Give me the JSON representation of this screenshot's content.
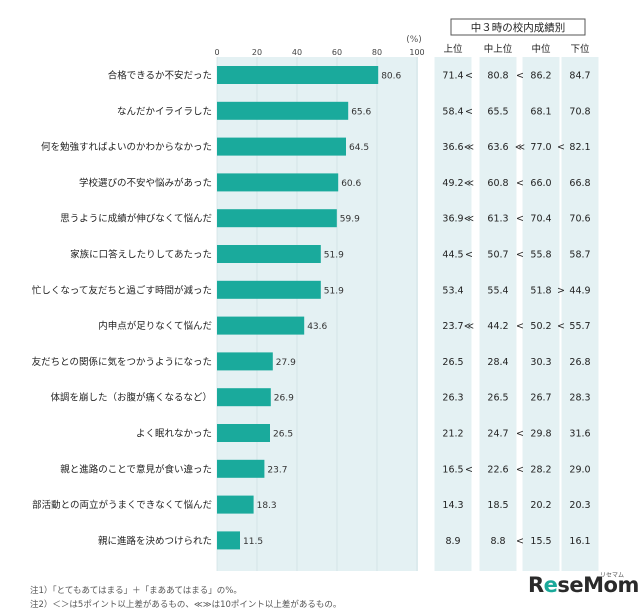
{
  "chart_data": {
    "type": "bar",
    "orientation": "horizontal",
    "unit": "(%)",
    "axis": {
      "min": 0,
      "max": 100,
      "ticks": [
        0,
        20,
        40,
        60,
        80,
        100
      ]
    },
    "categories": [
      "合格できるか不安だった",
      "なんだかイライラした",
      "何を勉強すればよいのかわからなかった",
      "学校選びの不安や悩みがあった",
      "思うように成績が伸びなくて悩んだ",
      "家族に口答えしたりしてあたった",
      "忙しくなって友だちと過ごす時間が減った",
      "内申点が足りなくて悩んだ",
      "友だちとの関係に気をつかうようになった",
      "体調を崩した（お腹が痛くなるなど）",
      "よく眠れなかった",
      "親と進路のことで意見が食い違った",
      "部活動との両立がうまくできなくて悩んだ",
      "親に進路を決めつけられた"
    ],
    "values": [
      80.6,
      65.6,
      64.5,
      60.6,
      59.9,
      51.9,
      51.9,
      43.6,
      27.9,
      26.9,
      26.5,
      23.7,
      18.3,
      11.5
    ],
    "bar_color": "#1aaa9c",
    "table": {
      "title": "中３時の校内成績別",
      "columns": [
        "上位",
        "中上位",
        "中位",
        "下位"
      ],
      "rows": [
        [
          "71.4",
          "80.8",
          "86.2",
          "84.7"
        ],
        [
          "58.4",
          "65.5",
          "68.1",
          "70.8"
        ],
        [
          "36.6",
          "63.6",
          "77.0",
          "82.1"
        ],
        [
          "49.2",
          "60.8",
          "66.0",
          "66.8"
        ],
        [
          "36.9",
          "61.3",
          "70.4",
          "70.6"
        ],
        [
          "44.5",
          "50.7",
          "55.8",
          "58.7"
        ],
        [
          "53.4",
          "55.4",
          "51.8",
          "44.9"
        ],
        [
          "23.7",
          "44.2",
          "50.2",
          "55.7"
        ],
        [
          "26.5",
          "28.4",
          "30.3",
          "26.8"
        ],
        [
          "26.3",
          "26.5",
          "26.7",
          "28.3"
        ],
        [
          "21.2",
          "24.7",
          "29.8",
          "31.6"
        ],
        [
          "16.5",
          "22.6",
          "28.2",
          "29.0"
        ],
        [
          "14.3",
          "18.5",
          "20.2",
          "20.3"
        ],
        [
          "8.9",
          "8.8",
          "15.5",
          "16.1"
        ]
      ],
      "comparisons": [
        [
          "<",
          "<",
          ""
        ],
        [
          "<",
          "",
          ""
        ],
        [
          "≪",
          "≪",
          "<"
        ],
        [
          "≪",
          "<",
          ""
        ],
        [
          "≪",
          "<",
          ""
        ],
        [
          "<",
          "<",
          ""
        ],
        [
          "",
          "",
          ">"
        ],
        [
          "≪",
          "<",
          "<"
        ],
        [
          "",
          "",
          ""
        ],
        [
          "",
          "",
          ""
        ],
        [
          "",
          "<",
          ""
        ],
        [
          "<",
          "<",
          ""
        ],
        [
          "",
          "",
          ""
        ],
        [
          "",
          "<",
          ""
        ]
      ]
    }
  },
  "notes": [
    "注1）「とてもあてはまる」＋「まああてはまる」の%。",
    "注2）＜＞は5ポイント以上差があるもの、≪≫は10ポイント以上差があるもの。"
  ],
  "logo": {
    "prefix": "R",
    "accent": "e",
    "suffix": "seMom",
    "sub": "リセマム"
  }
}
